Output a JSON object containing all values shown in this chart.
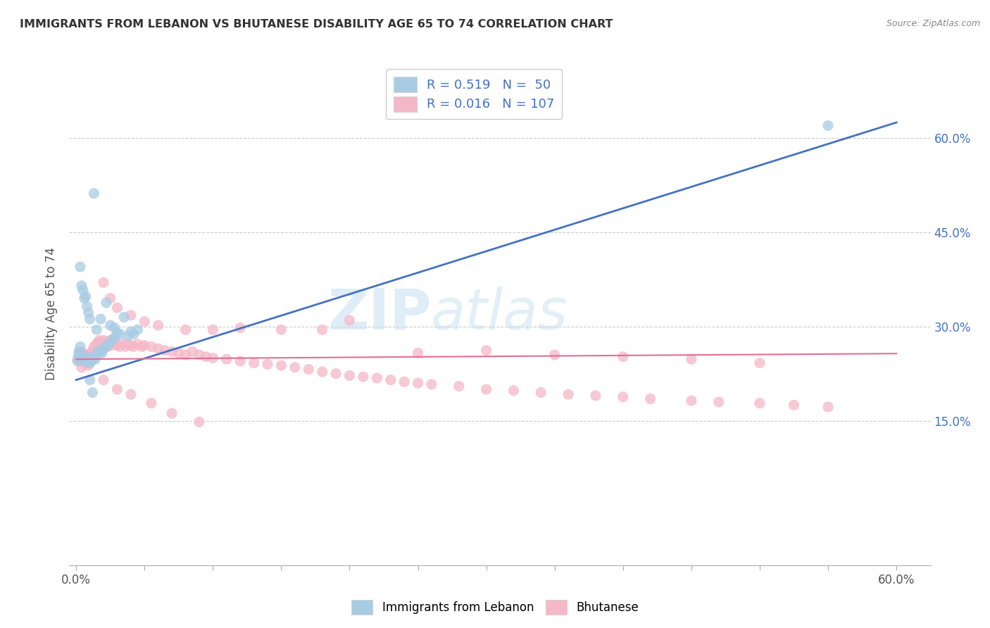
{
  "title": "IMMIGRANTS FROM LEBANON VS BHUTANESE DISABILITY AGE 65 TO 74 CORRELATION CHART",
  "source": "Source: ZipAtlas.com",
  "ylabel": "Disability Age 65 to 74",
  "legend1_label": "Immigrants from Lebanon",
  "legend2_label": "Bhutanese",
  "legend_R1": "R = 0.519",
  "legend_N1": "N =  50",
  "legend_R2": "R = 0.016",
  "legend_N2": "N = 107",
  "color_blue": "#a8cce4",
  "color_pink": "#f4b8c8",
  "color_blue_line": "#4472c4",
  "color_pink_line": "#e07090",
  "color_blue_text": "#4472c4",
  "watermark_zip": "ZIP",
  "watermark_atlas": "atlas",
  "xlim": [
    -0.005,
    0.625
  ],
  "ylim": [
    -0.08,
    0.72
  ],
  "x_ticks": [
    0.0,
    0.05,
    0.1,
    0.15,
    0.2,
    0.25,
    0.3,
    0.35,
    0.4,
    0.45,
    0.5,
    0.55,
    0.6
  ],
  "y_ticks": [
    0.15,
    0.3,
    0.45,
    0.6
  ],
  "blue_line_x0": 0.0,
  "blue_line_y0": 0.215,
  "blue_line_x1": 0.6,
  "blue_line_y1": 0.625,
  "pink_line_x0": 0.0,
  "pink_line_y0": 0.248,
  "pink_line_x1": 0.6,
  "pink_line_y1": 0.257,
  "blue_x": [
    0.002,
    0.003,
    0.004,
    0.005,
    0.006,
    0.007,
    0.008,
    0.009,
    0.01,
    0.011,
    0.012,
    0.013,
    0.014,
    0.015,
    0.016,
    0.017,
    0.018,
    0.019,
    0.02,
    0.022,
    0.024,
    0.026,
    0.028,
    0.03,
    0.032,
    0.035,
    0.038,
    0.04,
    0.042,
    0.045,
    0.001,
    0.002,
    0.003,
    0.003,
    0.004,
    0.005,
    0.006,
    0.007,
    0.008,
    0.009,
    0.01,
    0.015,
    0.018,
    0.022,
    0.025,
    0.028,
    0.01,
    0.012,
    0.55,
    0.013
  ],
  "blue_y": [
    0.26,
    0.25,
    0.255,
    0.248,
    0.245,
    0.252,
    0.248,
    0.245,
    0.242,
    0.245,
    0.248,
    0.252,
    0.248,
    0.255,
    0.26,
    0.258,
    0.262,
    0.258,
    0.265,
    0.268,
    0.272,
    0.278,
    0.282,
    0.29,
    0.288,
    0.315,
    0.285,
    0.292,
    0.288,
    0.295,
    0.245,
    0.255,
    0.268,
    0.395,
    0.365,
    0.358,
    0.345,
    0.348,
    0.332,
    0.322,
    0.312,
    0.295,
    0.312,
    0.338,
    0.302,
    0.298,
    0.215,
    0.195,
    0.62,
    0.512
  ],
  "pink_x": [
    0.001,
    0.002,
    0.003,
    0.003,
    0.004,
    0.004,
    0.005,
    0.005,
    0.006,
    0.006,
    0.007,
    0.007,
    0.008,
    0.008,
    0.009,
    0.01,
    0.01,
    0.011,
    0.012,
    0.013,
    0.014,
    0.015,
    0.016,
    0.017,
    0.018,
    0.019,
    0.02,
    0.021,
    0.022,
    0.023,
    0.024,
    0.025,
    0.026,
    0.028,
    0.03,
    0.032,
    0.034,
    0.036,
    0.038,
    0.04,
    0.042,
    0.045,
    0.048,
    0.05,
    0.055,
    0.06,
    0.065,
    0.07,
    0.075,
    0.08,
    0.085,
    0.09,
    0.095,
    0.1,
    0.11,
    0.12,
    0.13,
    0.14,
    0.15,
    0.16,
    0.17,
    0.18,
    0.19,
    0.2,
    0.21,
    0.22,
    0.23,
    0.24,
    0.25,
    0.26,
    0.28,
    0.3,
    0.32,
    0.34,
    0.36,
    0.38,
    0.4,
    0.42,
    0.45,
    0.47,
    0.5,
    0.525,
    0.55,
    0.02,
    0.025,
    0.03,
    0.04,
    0.05,
    0.06,
    0.08,
    0.1,
    0.12,
    0.15,
    0.18,
    0.2,
    0.25,
    0.3,
    0.35,
    0.4,
    0.45,
    0.5,
    0.02,
    0.03,
    0.04,
    0.055,
    0.07,
    0.09
  ],
  "pink_y": [
    0.248,
    0.252,
    0.245,
    0.26,
    0.235,
    0.252,
    0.245,
    0.258,
    0.25,
    0.255,
    0.248,
    0.242,
    0.255,
    0.248,
    0.238,
    0.252,
    0.248,
    0.258,
    0.262,
    0.268,
    0.26,
    0.272,
    0.275,
    0.278,
    0.268,
    0.272,
    0.278,
    0.27,
    0.275,
    0.268,
    0.272,
    0.278,
    0.27,
    0.275,
    0.27,
    0.268,
    0.272,
    0.268,
    0.272,
    0.27,
    0.268,
    0.272,
    0.268,
    0.27,
    0.268,
    0.265,
    0.262,
    0.26,
    0.258,
    0.255,
    0.26,
    0.255,
    0.252,
    0.25,
    0.248,
    0.245,
    0.242,
    0.24,
    0.238,
    0.235,
    0.232,
    0.228,
    0.225,
    0.222,
    0.22,
    0.218,
    0.215,
    0.212,
    0.21,
    0.208,
    0.205,
    0.2,
    0.198,
    0.195,
    0.192,
    0.19,
    0.188,
    0.185,
    0.182,
    0.18,
    0.178,
    0.175,
    0.172,
    0.37,
    0.345,
    0.33,
    0.318,
    0.308,
    0.302,
    0.295,
    0.295,
    0.298,
    0.295,
    0.295,
    0.31,
    0.258,
    0.262,
    0.255,
    0.252,
    0.248,
    0.242,
    0.215,
    0.2,
    0.192,
    0.178,
    0.162,
    0.148
  ]
}
